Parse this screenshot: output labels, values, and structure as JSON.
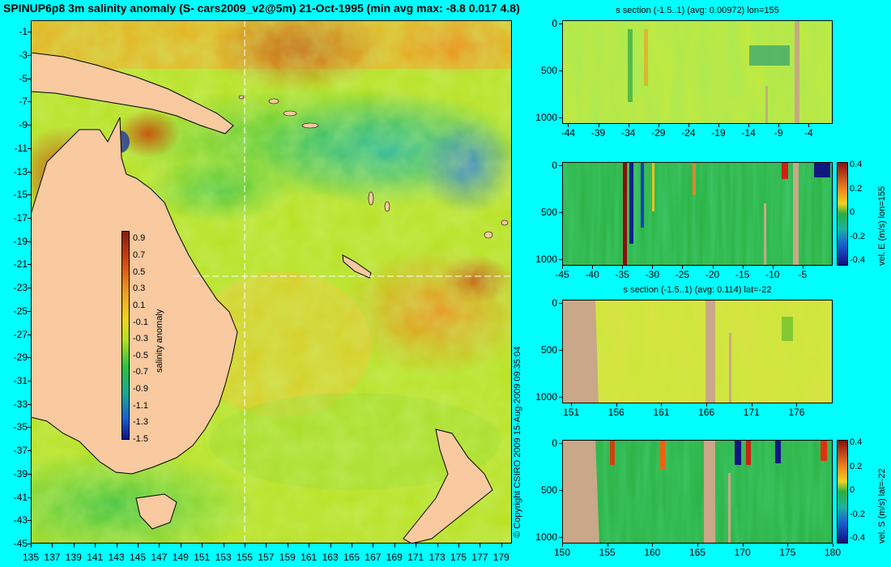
{
  "map": {
    "title": "SPINUP6p8 3m salinity anomaly (S- cars2009_v2@5m) 21-Oct-1995 (min avg max: -8.8 0.017 4.8)",
    "y_ticks": [
      "-1",
      "-3",
      "-5",
      "-7",
      "-9",
      "-11",
      "-13",
      "-15",
      "-17",
      "-19",
      "-21",
      "-23",
      "-25",
      "-27",
      "-29",
      "-31",
      "-33",
      "-35",
      "-37",
      "-39",
      "-41",
      "-43",
      "-45"
    ],
    "x_ticks": [
      "135",
      "137",
      "139",
      "141",
      "143",
      "145",
      "147",
      "149",
      "151",
      "153",
      "155",
      "157",
      "159",
      "161",
      "163",
      "165",
      "167",
      "169",
      "171",
      "173",
      "175",
      "177",
      "179"
    ],
    "colorbar_label": "salinity anomaly",
    "colorbar_ticks": [
      "0.9",
      "0.7",
      "0.5",
      "0.3",
      "0.1",
      "-0.1",
      "-0.3",
      "-0.5",
      "-0.7",
      "-0.9",
      "-1.1",
      "-1.3",
      "-1.5"
    ],
    "copyright": "© Copyright CSIRO 2009   15-Aug-2009 09:35:04"
  },
  "panels": {
    "p1": {
      "title": "s section (-1.5..1) (avg: 0.00972) lon=155",
      "y_ticks": [
        "0",
        "500",
        "1000"
      ],
      "x_ticks": [
        "-44",
        "-39",
        "-34",
        "-29",
        "-24",
        "-19",
        "-14",
        "-9",
        "-4"
      ]
    },
    "p2": {
      "title": "",
      "y_ticks": [
        "0",
        "500",
        "1000"
      ],
      "x_ticks": [
        "-45",
        "-40",
        "-35",
        "-30",
        "-25",
        "-20",
        "-15",
        "-10",
        "-5"
      ],
      "colorbar_label": "vel. E (m/s) lon=155",
      "colorbar_ticks": [
        "0.4",
        "0.2",
        "0",
        "-0.2",
        "-0.4"
      ]
    },
    "p3": {
      "title": "s section (-1.5..1) (avg: 0.114) lat=-22",
      "y_ticks": [
        "0",
        "500",
        "1000"
      ],
      "x_ticks": [
        "151",
        "156",
        "161",
        "166",
        "171",
        "176"
      ]
    },
    "p4": {
      "title": "",
      "y_ticks": [
        "0",
        "500",
        "1000"
      ],
      "x_ticks": [
        "150",
        "155",
        "160",
        "165",
        "170",
        "175",
        "180"
      ],
      "colorbar_label": "vel. S (m/s) lat=-22",
      "colorbar_ticks": [
        "0.4",
        "0.2",
        "0",
        "-0.2",
        "-0.4"
      ]
    }
  },
  "chart_data": [
    {
      "type": "heatmap",
      "title": "SPINUP6p8 3m salinity anomaly (S- cars2009_v2@5m) 21-Oct-1995 (min avg max: -8.8 0.017 4.8)",
      "xlim": [
        135,
        180
      ],
      "ylim": [
        -45,
        0
      ],
      "colorbar_label": "salinity anomaly",
      "clim": [
        -1.5,
        1
      ],
      "section_lines": {
        "lon": 155,
        "lat": -22
      }
    },
    {
      "type": "heatmap",
      "title": "s section (-1.5..1) (avg: 0.00972) lon=155",
      "xlim": [
        -45,
        0
      ],
      "ylim": [
        1000,
        0
      ]
    },
    {
      "type": "heatmap",
      "title": "",
      "xlim": [
        -45,
        0
      ],
      "ylim": [
        1000,
        0
      ],
      "colorbar_label": "vel. E (m/s) lon=155",
      "clim": [
        -0.4,
        0.4
      ]
    },
    {
      "type": "heatmap",
      "title": "s section (-1.5..1) (avg: 0.114) lat=-22",
      "xlim": [
        150,
        180
      ],
      "ylim": [
        1000,
        0
      ]
    },
    {
      "type": "heatmap",
      "title": "",
      "xlim": [
        150,
        180
      ],
      "ylim": [
        1000,
        0
      ],
      "colorbar_label": "vel. S (m/s) lat=-22",
      "clim": [
        -0.4,
        0.4
      ]
    }
  ]
}
